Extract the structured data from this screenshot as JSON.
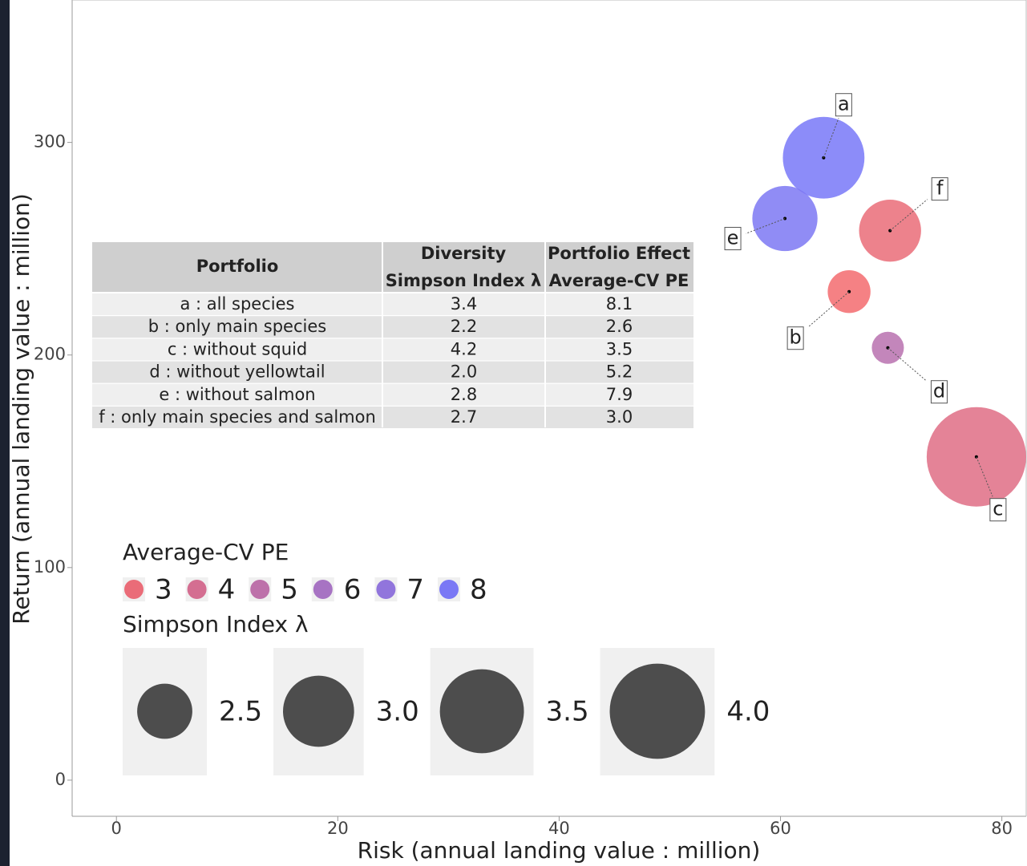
{
  "chart_data": {
    "type": "scatter",
    "xlabel": "Risk (annual landing value : million)",
    "ylabel": "Return (annual landing value : million)",
    "xlim": [
      -4,
      82.2
    ],
    "ylim": [
      -17,
      367
    ],
    "xticks": [
      0,
      20,
      40,
      60,
      80
    ],
    "yticks": [
      0,
      100,
      200,
      300
    ],
    "point_labels": [
      "a",
      "b",
      "c",
      "d",
      "e",
      "f"
    ],
    "x": [
      63.9,
      66.2,
      77.7,
      69.7,
      60.4,
      69.9
    ],
    "y": [
      292.8,
      229.8,
      152.1,
      203.4,
      264.2,
      258.5
    ],
    "size": [
      3.4,
      2.2,
      4.2,
      2.0,
      2.8,
      2.7
    ],
    "color_values": [
      8.1,
      2.6,
      3.5,
      5.2,
      7.9,
      3.0
    ],
    "color_low": "#f36b6e",
    "color_high": "#7878f8",
    "color_legend": {
      "title": "Average-CV PE",
      "breaks": [
        3,
        4,
        5,
        6,
        7,
        8
      ]
    },
    "size_legend": {
      "title": "Simpson Index λ",
      "breaks": [
        {
          "value": 2.5,
          "label": "2.5"
        },
        {
          "value": 3,
          "label": "3.0"
        },
        {
          "value": 3.5,
          "label": "3.5"
        },
        {
          "value": 4,
          "label": "4.0"
        }
      ]
    }
  },
  "table": {
    "headers": [
      "Portfolio",
      "Diversity",
      "Simpson Index λ",
      "Portfolio Effect",
      "Average-CV PE"
    ],
    "rows": [
      [
        "a : all species",
        "3.4",
        "8.1"
      ],
      [
        "b : only main species",
        "2.2",
        "2.6"
      ],
      [
        "c : without squid",
        "4.2",
        "3.5"
      ],
      [
        "d : without yellowtail",
        "2.0",
        "5.2"
      ],
      [
        "e : without salmon",
        "2.8",
        "7.9"
      ],
      [
        "f : only main species and salmon",
        "2.7",
        "3.0"
      ]
    ]
  }
}
